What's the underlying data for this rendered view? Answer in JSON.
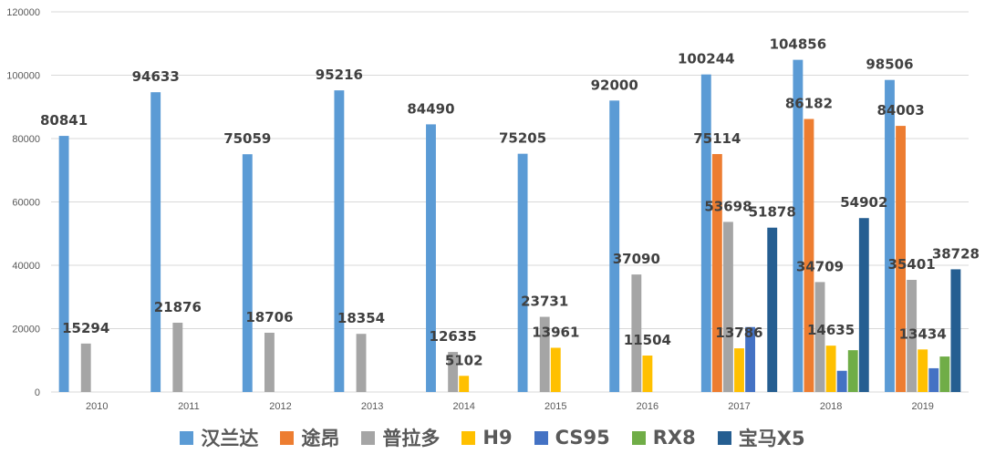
{
  "chart_data": {
    "type": "bar",
    "categories": [
      "2010",
      "2011",
      "2012",
      "2013",
      "2014",
      "2015",
      "2016",
      "2017",
      "2018",
      "2019"
    ],
    "ylim": [
      0,
      120000
    ],
    "yticks": [
      0,
      20000,
      40000,
      60000,
      80000,
      100000,
      120000
    ],
    "grid": true,
    "legend_position": "bottom",
    "series": [
      {
        "name": "汉兰达",
        "color": "#5B9BD5",
        "values": [
          80841,
          94633,
          75059,
          95216,
          84490,
          75205,
          92000,
          100244,
          104856,
          98506
        ]
      },
      {
        "name": "途昂",
        "color": "#ED7D31",
        "values": [
          null,
          null,
          null,
          null,
          null,
          null,
          null,
          75114,
          86182,
          84003
        ]
      },
      {
        "name": "普拉多",
        "color": "#A5A5A5",
        "values": [
          15294,
          21876,
          18706,
          18354,
          12635,
          23731,
          37090,
          53698,
          34709,
          35401
        ]
      },
      {
        "name": "H9",
        "color": "#FFC000",
        "values": [
          null,
          null,
          null,
          null,
          5102,
          13961,
          11504,
          13786,
          14635,
          13434
        ]
      },
      {
        "name": "CS95",
        "color": "#4472C4",
        "values": [
          null,
          null,
          null,
          null,
          null,
          null,
          null,
          20500,
          6700,
          7500
        ]
      },
      {
        "name": "RX8",
        "color": "#70AD47",
        "values": [
          null,
          null,
          null,
          null,
          null,
          null,
          null,
          null,
          13200,
          11200
        ]
      },
      {
        "name": "宝马X5",
        "color": "#255E91",
        "values": [
          null,
          null,
          null,
          null,
          null,
          null,
          null,
          51878,
          54902,
          38728
        ]
      }
    ],
    "data_labels": [
      {
        "series": 0,
        "category": 0,
        "text": "80841"
      },
      {
        "series": 0,
        "category": 1,
        "text": "94633"
      },
      {
        "series": 0,
        "category": 2,
        "text": "75059"
      },
      {
        "series": 0,
        "category": 3,
        "text": "95216"
      },
      {
        "series": 0,
        "category": 4,
        "text": "84490"
      },
      {
        "series": 0,
        "category": 5,
        "text": "75205"
      },
      {
        "series": 0,
        "category": 6,
        "text": "92000"
      },
      {
        "series": 0,
        "category": 7,
        "text": "100244"
      },
      {
        "series": 0,
        "category": 8,
        "text": "104856"
      },
      {
        "series": 0,
        "category": 9,
        "text": "98506"
      },
      {
        "series": 1,
        "category": 7,
        "text": "75114"
      },
      {
        "series": 1,
        "category": 8,
        "text": "86182"
      },
      {
        "series": 1,
        "category": 9,
        "text": "84003"
      },
      {
        "series": 2,
        "category": 0,
        "text": "15294"
      },
      {
        "series": 2,
        "category": 1,
        "text": "21876"
      },
      {
        "series": 2,
        "category": 2,
        "text": "18706"
      },
      {
        "series": 2,
        "category": 3,
        "text": "18354"
      },
      {
        "series": 2,
        "category": 4,
        "text": "12635"
      },
      {
        "series": 2,
        "category": 5,
        "text": "23731"
      },
      {
        "series": 2,
        "category": 6,
        "text": "37090"
      },
      {
        "series": 2,
        "category": 7,
        "text": "53698"
      },
      {
        "series": 2,
        "category": 8,
        "text": "34709"
      },
      {
        "series": 2,
        "category": 9,
        "text": "35401"
      },
      {
        "series": 3,
        "category": 4,
        "text": "5102"
      },
      {
        "series": 3,
        "category": 5,
        "text": "13961"
      },
      {
        "series": 3,
        "category": 6,
        "text": "11504"
      },
      {
        "series": 3,
        "category": 7,
        "text": "13786"
      },
      {
        "series": 3,
        "category": 8,
        "text": "14635"
      },
      {
        "series": 3,
        "category": 9,
        "text": "13434"
      },
      {
        "series": 6,
        "category": 7,
        "text": "51878"
      },
      {
        "series": 6,
        "category": 8,
        "text": "54902"
      },
      {
        "series": 6,
        "category": 9,
        "text": "38728"
      }
    ]
  }
}
